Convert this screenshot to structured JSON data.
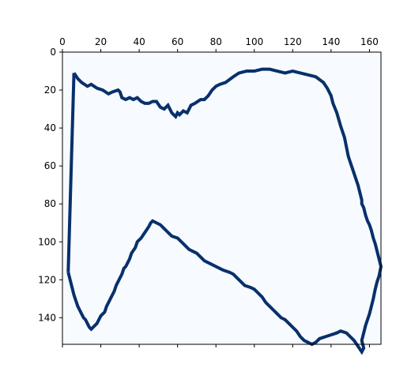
{
  "chart_data": {
    "type": "heatmap",
    "description_source": "binary image rendered with imshow",
    "x_axis_position": "top",
    "xlim": [
      0,
      166
    ],
    "ylim": [
      154,
      0
    ],
    "x_ticks": [
      0,
      20,
      40,
      60,
      80,
      100,
      120,
      140,
      160
    ],
    "y_ticks": [
      0,
      20,
      40,
      60,
      80,
      100,
      120,
      140
    ],
    "grid": false,
    "legend": "none",
    "colormap": {
      "background": "#f7fbff",
      "foreground": "#08306b"
    },
    "contour": [
      [
        6,
        11
      ],
      [
        8,
        14
      ],
      [
        10,
        16
      ],
      [
        13,
        18
      ],
      [
        15,
        17
      ],
      [
        18,
        19
      ],
      [
        21,
        20
      ],
      [
        24,
        22
      ],
      [
        26,
        21
      ],
      [
        29,
        20
      ],
      [
        30,
        21
      ],
      [
        31,
        24
      ],
      [
        33,
        25
      ],
      [
        35,
        24
      ],
      [
        37,
        25
      ],
      [
        39,
        24
      ],
      [
        41,
        26
      ],
      [
        43,
        27
      ],
      [
        45,
        27
      ],
      [
        47,
        26
      ],
      [
        49,
        26
      ],
      [
        51,
        29
      ],
      [
        53,
        30
      ],
      [
        55,
        28
      ],
      [
        57,
        32
      ],
      [
        59,
        34
      ],
      [
        60,
        32
      ],
      [
        61,
        33
      ],
      [
        63,
        31
      ],
      [
        65,
        32
      ],
      [
        66,
        30
      ],
      [
        67,
        28
      ],
      [
        69,
        27
      ],
      [
        72,
        25
      ],
      [
        74,
        25
      ],
      [
        76,
        23
      ],
      [
        78,
        20
      ],
      [
        80,
        18
      ],
      [
        82,
        17
      ],
      [
        85,
        16
      ],
      [
        89,
        13
      ],
      [
        92,
        11
      ],
      [
        96,
        10
      ],
      [
        100,
        10
      ],
      [
        104,
        9
      ],
      [
        108,
        9
      ],
      [
        112,
        10
      ],
      [
        116,
        11
      ],
      [
        120,
        10
      ],
      [
        124,
        11
      ],
      [
        128,
        12
      ],
      [
        132,
        13
      ],
      [
        136,
        16
      ],
      [
        138,
        19
      ],
      [
        140,
        23
      ],
      [
        141,
        27
      ],
      [
        143,
        32
      ],
      [
        145,
        39
      ],
      [
        147,
        45
      ],
      [
        148,
        50
      ],
      [
        149,
        55
      ],
      [
        150,
        58
      ],
      [
        151,
        61
      ],
      [
        152,
        64
      ],
      [
        153,
        67
      ],
      [
        154,
        70
      ],
      [
        155,
        74
      ],
      [
        156,
        78
      ],
      [
        156,
        80
      ],
      [
        157,
        82
      ],
      [
        158,
        86
      ],
      [
        159,
        89
      ],
      [
        160,
        91
      ],
      [
        161,
        94
      ],
      [
        162,
        98
      ],
      [
        163,
        101
      ],
      [
        164,
        105
      ],
      [
        165,
        109
      ],
      [
        166,
        113
      ],
      [
        165,
        118
      ],
      [
        164,
        121
      ],
      [
        163,
        125
      ],
      [
        162,
        130
      ],
      [
        161,
        134
      ],
      [
        160,
        138
      ],
      [
        159,
        141
      ],
      [
        158,
        144
      ],
      [
        157,
        148
      ],
      [
        156,
        152
      ],
      [
        157,
        156
      ],
      [
        156,
        158
      ],
      [
        154,
        155
      ],
      [
        152,
        152
      ],
      [
        150,
        150
      ],
      [
        148,
        148
      ],
      [
        145,
        147
      ],
      [
        143,
        148
      ],
      [
        140,
        149
      ],
      [
        137,
        150
      ],
      [
        134,
        151
      ],
      [
        132,
        153
      ],
      [
        130,
        154
      ],
      [
        128,
        153
      ],
      [
        126,
        152
      ],
      [
        124,
        150
      ],
      [
        122,
        147
      ],
      [
        120,
        145
      ],
      [
        118,
        143
      ],
      [
        116,
        141
      ],
      [
        114,
        140
      ],
      [
        112,
        138
      ],
      [
        110,
        136
      ],
      [
        108,
        134
      ],
      [
        106,
        132
      ],
      [
        104,
        129
      ],
      [
        102,
        127
      ],
      [
        100,
        125
      ],
      [
        98,
        124
      ],
      [
        95,
        123
      ],
      [
        93,
        121
      ],
      [
        91,
        119
      ],
      [
        89,
        117
      ],
      [
        87,
        116
      ],
      [
        84,
        115
      ],
      [
        82,
        114
      ],
      [
        80,
        113
      ],
      [
        78,
        112
      ],
      [
        76,
        111
      ],
      [
        74,
        110
      ],
      [
        72,
        108
      ],
      [
        70,
        106
      ],
      [
        68,
        105
      ],
      [
        66,
        104
      ],
      [
        64,
        102
      ],
      [
        62,
        100
      ],
      [
        60,
        98
      ],
      [
        57,
        97
      ],
      [
        55,
        95
      ],
      [
        53,
        93
      ],
      [
        51,
        91
      ],
      [
        49,
        90
      ],
      [
        47,
        89
      ],
      [
        46,
        90
      ],
      [
        45,
        92
      ],
      [
        43,
        95
      ],
      [
        41,
        98
      ],
      [
        39,
        100
      ],
      [
        38,
        103
      ],
      [
        36,
        106
      ],
      [
        35,
        109
      ],
      [
        34,
        111
      ],
      [
        33,
        113
      ],
      [
        32,
        114
      ],
      [
        31,
        117
      ],
      [
        30,
        119
      ],
      [
        29,
        121
      ],
      [
        28,
        123
      ],
      [
        27,
        126
      ],
      [
        26,
        128
      ],
      [
        25,
        130
      ],
      [
        24,
        132
      ],
      [
        23,
        134
      ],
      [
        22,
        137
      ],
      [
        21,
        138
      ],
      [
        20,
        139
      ],
      [
        19,
        141
      ],
      [
        18,
        143
      ],
      [
        17,
        144
      ],
      [
        16,
        145
      ],
      [
        15,
        146
      ],
      [
        14,
        145
      ],
      [
        13,
        143
      ],
      [
        12,
        141
      ],
      [
        11,
        140
      ],
      [
        10,
        138
      ],
      [
        9,
        136
      ],
      [
        8,
        134
      ],
      [
        7,
        131
      ],
      [
        6,
        128
      ],
      [
        5,
        124
      ],
      [
        4,
        120
      ],
      [
        3,
        116
      ]
    ]
  }
}
